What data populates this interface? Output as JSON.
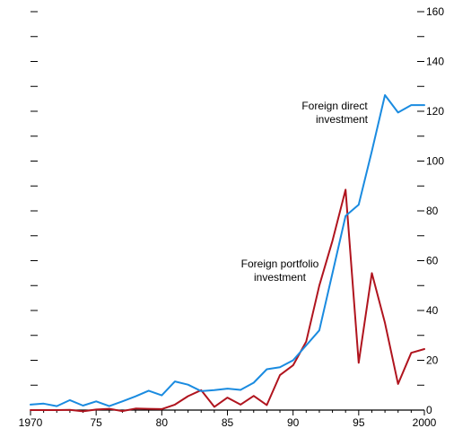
{
  "chart_data": {
    "type": "line",
    "title": "",
    "xlabel": "",
    "ylabel": "",
    "xlim": [
      1970,
      2000
    ],
    "ylim": [
      0,
      160
    ],
    "x_tick_labels": [
      "1970",
      "75",
      "80",
      "85",
      "90",
      "95",
      "2000"
    ],
    "x_tick_values": [
      1970,
      1975,
      1980,
      1985,
      1990,
      1995,
      2000
    ],
    "y_tick_labels": [
      "0",
      "20",
      "40",
      "60",
      "80",
      "100",
      "120",
      "140",
      "160"
    ],
    "y_tick_values": [
      0,
      20,
      40,
      60,
      80,
      100,
      120,
      140,
      160
    ],
    "grid": false,
    "x": [
      1970,
      1971,
      1972,
      1973,
      1974,
      1975,
      1976,
      1977,
      1978,
      1979,
      1980,
      1981,
      1982,
      1983,
      1984,
      1985,
      1986,
      1987,
      1988,
      1989,
      1990,
      1991,
      1992,
      1993,
      1994,
      1995,
      1996,
      1997,
      1998,
      1999,
      2000
    ],
    "series": [
      {
        "name": "Foreign direct investment",
        "color": "#1a8be0",
        "values": [
          2.2,
          2.6,
          1.6,
          4.0,
          1.8,
          3.5,
          1.6,
          3.5,
          5.5,
          7.8,
          5.9,
          11.5,
          10.2,
          7.6,
          8.0,
          8.6,
          8.1,
          11.0,
          16.4,
          17.2,
          20.0,
          26.0,
          32.0,
          55.0,
          78.0,
          82.5,
          104.0,
          126.5,
          119.5,
          122.5,
          122.5
        ]
      },
      {
        "name": "Foreign portfolio investment",
        "color": "#b0141e",
        "values": [
          0.0,
          0.0,
          0.0,
          0.1,
          -0.5,
          0.2,
          0.5,
          -0.4,
          0.6,
          0.5,
          0.4,
          2.2,
          5.6,
          8.0,
          1.3,
          5.0,
          2.2,
          5.7,
          2.0,
          14.0,
          18.0,
          27.5,
          50.0,
          68.0,
          88.5,
          19.0,
          55.0,
          35.0,
          10.5,
          23.0,
          24.5
        ]
      }
    ],
    "annotations": [
      {
        "series": 0,
        "lines": [
          "Foreign direct",
          "investment"
        ]
      },
      {
        "series": 1,
        "lines": [
          "Foreign portfolio",
          "investment"
        ]
      }
    ]
  }
}
